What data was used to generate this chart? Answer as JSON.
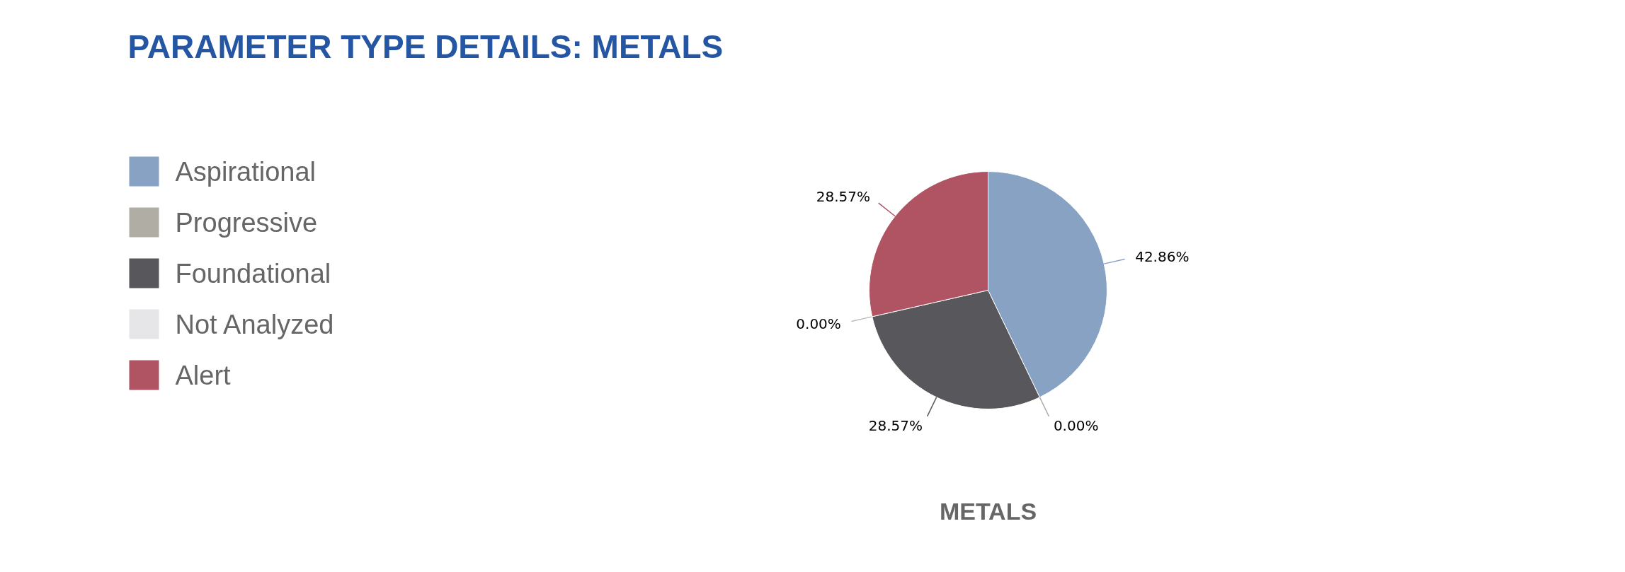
{
  "chart_data": {
    "type": "pie",
    "title": "PARAMETER TYPE DETAILS: METALS",
    "xlabel": "METALS",
    "categories": [
      "Aspirational",
      "Progressive",
      "Foundational",
      "Not Analyzed",
      "Alert"
    ],
    "values": [
      42.86,
      0,
      28.57,
      0,
      28.57
    ],
    "colors": [
      "#88a2c4",
      "#b0aea4",
      "#58585c",
      "#e6e6e8",
      "#b05464"
    ],
    "value_labels": [
      "42.86%",
      "0.00%",
      "28.57%",
      "0.00%",
      "28.57%"
    ],
    "legend": "left"
  }
}
